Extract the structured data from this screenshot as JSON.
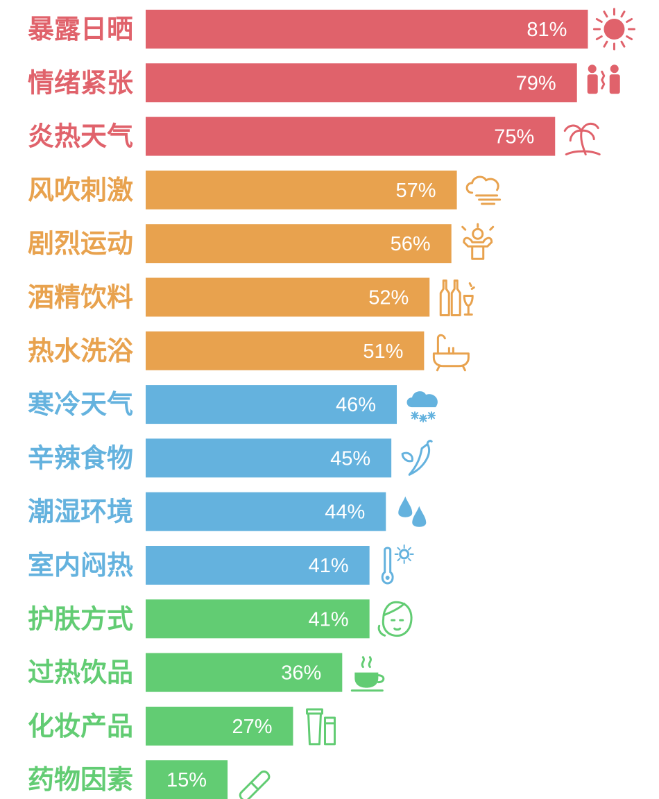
{
  "chart_data": {
    "type": "bar",
    "orientation": "horizontal",
    "xlim": [
      0,
      100
    ],
    "grid": false,
    "legend": "none",
    "value_format": "{v}%",
    "groups": {
      "red": {
        "color": "#e0626b"
      },
      "orange": {
        "color": "#e8a24e"
      },
      "blue": {
        "color": "#64b2de"
      },
      "green": {
        "color": "#62cc73"
      }
    },
    "bars": [
      {
        "label": "暴露日晒",
        "value": 81,
        "group": "red",
        "icon": "sun-icon"
      },
      {
        "label": "情绪紧张",
        "value": 79,
        "group": "red",
        "icon": "stressed-people-icon"
      },
      {
        "label": "炎热天气",
        "value": 75,
        "group": "red",
        "icon": "palm-tree-icon"
      },
      {
        "label": "风吹刺激",
        "value": 57,
        "group": "orange",
        "icon": "wind-cloud-icon"
      },
      {
        "label": "剧烈运动",
        "value": 56,
        "group": "orange",
        "icon": "muscle-man-icon"
      },
      {
        "label": "酒精饮料",
        "value": 52,
        "group": "orange",
        "icon": "wine-bottles-icon"
      },
      {
        "label": "热水洗浴",
        "value": 51,
        "group": "orange",
        "icon": "bathtub-icon"
      },
      {
        "label": "寒冷天气",
        "value": 46,
        "group": "blue",
        "icon": "snow-cloud-icon"
      },
      {
        "label": "辛辣食物",
        "value": 45,
        "group": "blue",
        "icon": "chili-pepper-icon"
      },
      {
        "label": "潮湿环境",
        "value": 44,
        "group": "blue",
        "icon": "water-drops-icon"
      },
      {
        "label": "室内闷热",
        "value": 41,
        "group": "blue",
        "icon": "thermometer-sun-icon"
      },
      {
        "label": "护肤方式",
        "value": 41,
        "group": "green",
        "icon": "face-care-icon"
      },
      {
        "label": "过热饮品",
        "value": 36,
        "group": "green",
        "icon": "hot-cup-icon"
      },
      {
        "label": "化妆产品",
        "value": 27,
        "group": "green",
        "icon": "cosmetic-tube-icon"
      },
      {
        "label": "药物因素",
        "value": 15,
        "group": "green",
        "icon": "pill-icon"
      }
    ]
  }
}
